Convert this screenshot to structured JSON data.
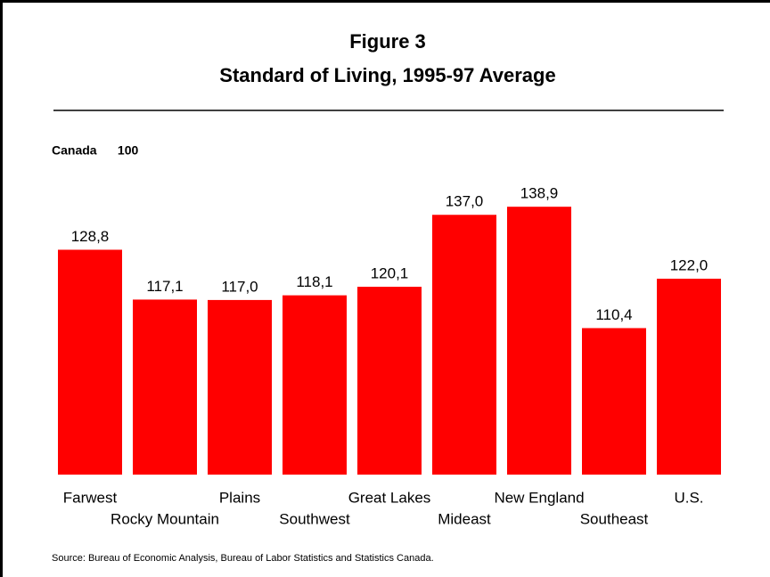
{
  "chart_data": {
    "type": "bar",
    "title": "Figure 3",
    "subtitle": "Standard of Living, 1995-97 Average",
    "note": "Canada      100",
    "source": "Source: Bureau of Economic Analysis, Bureau of Labor Statistics and Statistics Canada.",
    "categories": [
      "Farwest",
      "Rocky Mountain",
      "Plains",
      "Southwest",
      "Great Lakes",
      "Mideast",
      "New England",
      "Southeast",
      "U.S."
    ],
    "values": [
      128.8,
      117.1,
      117.0,
      118.1,
      120.1,
      137.0,
      138.9,
      110.4,
      122.0
    ],
    "value_labels": [
      "128,8",
      "117,1",
      "117,0",
      "118,1",
      "120,1",
      "137,0",
      "138,9",
      "110,4",
      "122,0"
    ],
    "color": "#ff0000",
    "ylim": [
      76,
      145
    ]
  }
}
